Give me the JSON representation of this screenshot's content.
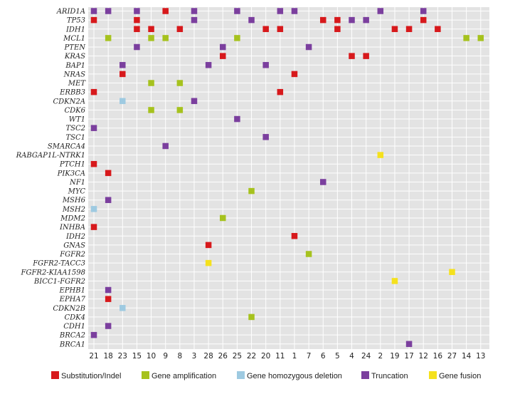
{
  "chart_data": {
    "type": "heatmap",
    "title": "",
    "xlabel": "",
    "ylabel": "",
    "samples": [
      "21",
      "18",
      "23",
      "15",
      "10",
      "9",
      "8",
      "3",
      "28",
      "26",
      "25",
      "22",
      "20",
      "11",
      "1",
      "7",
      "6",
      "5",
      "4",
      "24",
      "2",
      "19",
      "17",
      "12",
      "16",
      "27",
      "14",
      "13"
    ],
    "genes": [
      "ARID1A",
      "TP53",
      "IDH1",
      "MCL1",
      "PTEN",
      "KRAS",
      "BAP1",
      "NRAS",
      "MET",
      "ERBB3",
      "CDKN2A",
      "CDK6",
      "WT1",
      "TSC2",
      "TSC1",
      "SMARCA4",
      "RABGAP1L-NTRK1",
      "PTCH1",
      "PIK3CA",
      "NF1",
      "MYC",
      "MSH6",
      "MSH2",
      "MDM2",
      "INHBA",
      "IDH2",
      "GNAS",
      "FGFR2",
      "FGFR2-TACC3",
      "FGFR2-KIAA1598",
      "BICC1-FGFR2",
      "EPHB1",
      "EPHA7",
      "CDKN2B",
      "CDK4",
      "CDH1",
      "BRCA2",
      "BRCA1"
    ],
    "legend": [
      {
        "key": "sub",
        "label": "Substitution/Indel",
        "color": "#d7191c"
      },
      {
        "key": "amp",
        "label": "Gene amplification",
        "color": "#a6c21e"
      },
      {
        "key": "del",
        "label": "Gene homozygous deletion",
        "color": "#9ecae1"
      },
      {
        "key": "trunc",
        "label": "Truncation",
        "color": "#7b3f9e"
      },
      {
        "key": "fus",
        "label": "Gene fusion",
        "color": "#f5e11d"
      }
    ],
    "cells": [
      {
        "gene": "ARID1A",
        "sample": "21",
        "type": "trunc"
      },
      {
        "gene": "ARID1A",
        "sample": "18",
        "type": "trunc"
      },
      {
        "gene": "ARID1A",
        "sample": "15",
        "type": "trunc"
      },
      {
        "gene": "ARID1A",
        "sample": "9",
        "type": "sub"
      },
      {
        "gene": "ARID1A",
        "sample": "3",
        "type": "trunc"
      },
      {
        "gene": "ARID1A",
        "sample": "25",
        "type": "trunc"
      },
      {
        "gene": "ARID1A",
        "sample": "11",
        "type": "trunc"
      },
      {
        "gene": "ARID1A",
        "sample": "1",
        "type": "trunc"
      },
      {
        "gene": "ARID1A",
        "sample": "2",
        "type": "trunc"
      },
      {
        "gene": "ARID1A",
        "sample": "12",
        "type": "trunc"
      },
      {
        "gene": "TP53",
        "sample": "21",
        "type": "sub"
      },
      {
        "gene": "TP53",
        "sample": "15",
        "type": "sub"
      },
      {
        "gene": "TP53",
        "sample": "3",
        "type": "trunc"
      },
      {
        "gene": "TP53",
        "sample": "22",
        "type": "trunc"
      },
      {
        "gene": "TP53",
        "sample": "6",
        "type": "sub"
      },
      {
        "gene": "TP53",
        "sample": "5",
        "type": "sub"
      },
      {
        "gene": "TP53",
        "sample": "4",
        "type": "trunc"
      },
      {
        "gene": "TP53",
        "sample": "24",
        "type": "trunc"
      },
      {
        "gene": "TP53",
        "sample": "12",
        "type": "sub"
      },
      {
        "gene": "IDH1",
        "sample": "15",
        "type": "sub"
      },
      {
        "gene": "IDH1",
        "sample": "10",
        "type": "sub"
      },
      {
        "gene": "IDH1",
        "sample": "8",
        "type": "sub"
      },
      {
        "gene": "IDH1",
        "sample": "20",
        "type": "sub"
      },
      {
        "gene": "IDH1",
        "sample": "11",
        "type": "sub"
      },
      {
        "gene": "IDH1",
        "sample": "5",
        "type": "sub"
      },
      {
        "gene": "IDH1",
        "sample": "19",
        "type": "sub"
      },
      {
        "gene": "IDH1",
        "sample": "17",
        "type": "sub"
      },
      {
        "gene": "IDH1",
        "sample": "16",
        "type": "sub"
      },
      {
        "gene": "MCL1",
        "sample": "18",
        "type": "amp"
      },
      {
        "gene": "MCL1",
        "sample": "10",
        "type": "amp"
      },
      {
        "gene": "MCL1",
        "sample": "9",
        "type": "amp"
      },
      {
        "gene": "MCL1",
        "sample": "25",
        "type": "amp"
      },
      {
        "gene": "MCL1",
        "sample": "14",
        "type": "amp"
      },
      {
        "gene": "MCL1",
        "sample": "13",
        "type": "amp"
      },
      {
        "gene": "PTEN",
        "sample": "15",
        "type": "trunc"
      },
      {
        "gene": "PTEN",
        "sample": "26",
        "type": "trunc"
      },
      {
        "gene": "PTEN",
        "sample": "7",
        "type": "trunc"
      },
      {
        "gene": "KRAS",
        "sample": "26",
        "type": "sub"
      },
      {
        "gene": "KRAS",
        "sample": "4",
        "type": "sub"
      },
      {
        "gene": "KRAS",
        "sample": "24",
        "type": "sub"
      },
      {
        "gene": "BAP1",
        "sample": "23",
        "type": "trunc"
      },
      {
        "gene": "BAP1",
        "sample": "28",
        "type": "trunc"
      },
      {
        "gene": "BAP1",
        "sample": "20",
        "type": "trunc"
      },
      {
        "gene": "NRAS",
        "sample": "23",
        "type": "sub"
      },
      {
        "gene": "NRAS",
        "sample": "1",
        "type": "sub"
      },
      {
        "gene": "MET",
        "sample": "10",
        "type": "amp"
      },
      {
        "gene": "MET",
        "sample": "8",
        "type": "amp"
      },
      {
        "gene": "ERBB3",
        "sample": "21",
        "type": "sub"
      },
      {
        "gene": "ERBB3",
        "sample": "11",
        "type": "sub"
      },
      {
        "gene": "CDKN2A",
        "sample": "23",
        "type": "del"
      },
      {
        "gene": "CDKN2A",
        "sample": "3",
        "type": "trunc"
      },
      {
        "gene": "CDK6",
        "sample": "10",
        "type": "amp"
      },
      {
        "gene": "CDK6",
        "sample": "8",
        "type": "amp"
      },
      {
        "gene": "WT1",
        "sample": "25",
        "type": "trunc"
      },
      {
        "gene": "TSC2",
        "sample": "21",
        "type": "trunc"
      },
      {
        "gene": "TSC1",
        "sample": "20",
        "type": "trunc"
      },
      {
        "gene": "SMARCA4",
        "sample": "9",
        "type": "trunc"
      },
      {
        "gene": "RABGAP1L-NTRK1",
        "sample": "2",
        "type": "fus"
      },
      {
        "gene": "PTCH1",
        "sample": "21",
        "type": "sub"
      },
      {
        "gene": "PIK3CA",
        "sample": "18",
        "type": "sub"
      },
      {
        "gene": "NF1",
        "sample": "6",
        "type": "trunc"
      },
      {
        "gene": "MYC",
        "sample": "22",
        "type": "amp"
      },
      {
        "gene": "MSH6",
        "sample": "18",
        "type": "trunc"
      },
      {
        "gene": "MSH2",
        "sample": "21",
        "type": "del"
      },
      {
        "gene": "MDM2",
        "sample": "26",
        "type": "amp"
      },
      {
        "gene": "INHBA",
        "sample": "21",
        "type": "sub"
      },
      {
        "gene": "IDH2",
        "sample": "1",
        "type": "sub"
      },
      {
        "gene": "GNAS",
        "sample": "28",
        "type": "sub"
      },
      {
        "gene": "FGFR2",
        "sample": "7",
        "type": "amp"
      },
      {
        "gene": "FGFR2-TACC3",
        "sample": "28",
        "type": "fus"
      },
      {
        "gene": "FGFR2-KIAA1598",
        "sample": "27",
        "type": "fus"
      },
      {
        "gene": "BICC1-FGFR2",
        "sample": "19",
        "type": "fus"
      },
      {
        "gene": "EPHB1",
        "sample": "18",
        "type": "trunc"
      },
      {
        "gene": "EPHA7",
        "sample": "18",
        "type": "sub"
      },
      {
        "gene": "CDKN2B",
        "sample": "23",
        "type": "del"
      },
      {
        "gene": "CDK4",
        "sample": "22",
        "type": "amp"
      },
      {
        "gene": "CDH1",
        "sample": "18",
        "type": "trunc"
      },
      {
        "gene": "BRCA2",
        "sample": "21",
        "type": "trunc"
      },
      {
        "gene": "BRCA1",
        "sample": "17",
        "type": "trunc"
      }
    ]
  }
}
